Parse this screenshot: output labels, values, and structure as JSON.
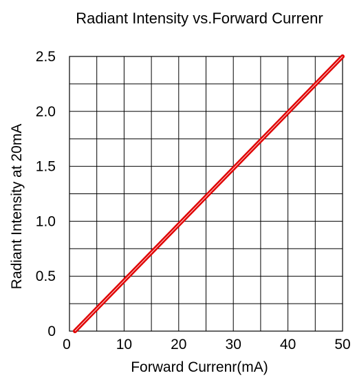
{
  "chart_data": {
    "type": "line",
    "title": "Radiant Intensity vs.Forward Currenr",
    "xlabel": "Forward Currenr(mA)",
    "ylabel": "Radiant Intensity at 20mA",
    "xlim": [
      0,
      50
    ],
    "ylim": [
      0,
      2.5
    ],
    "x_ticks": [
      0,
      10,
      20,
      30,
      40,
      50
    ],
    "y_ticks": [
      0,
      0.5,
      1.0,
      1.5,
      2.0,
      2.5
    ],
    "x_tick_labels": [
      "0",
      "10",
      "20",
      "30",
      "40",
      "50"
    ],
    "y_tick_labels": [
      "0",
      "0.5",
      "1.0",
      "1.5",
      "2.0",
      "2.5"
    ],
    "grid": true,
    "x_grid_step": 5,
    "y_grid_step": 0.25,
    "series": [
      {
        "color": "#e00000",
        "x": [
          1,
          50
        ],
        "y": [
          0,
          2.5
        ]
      }
    ]
  }
}
